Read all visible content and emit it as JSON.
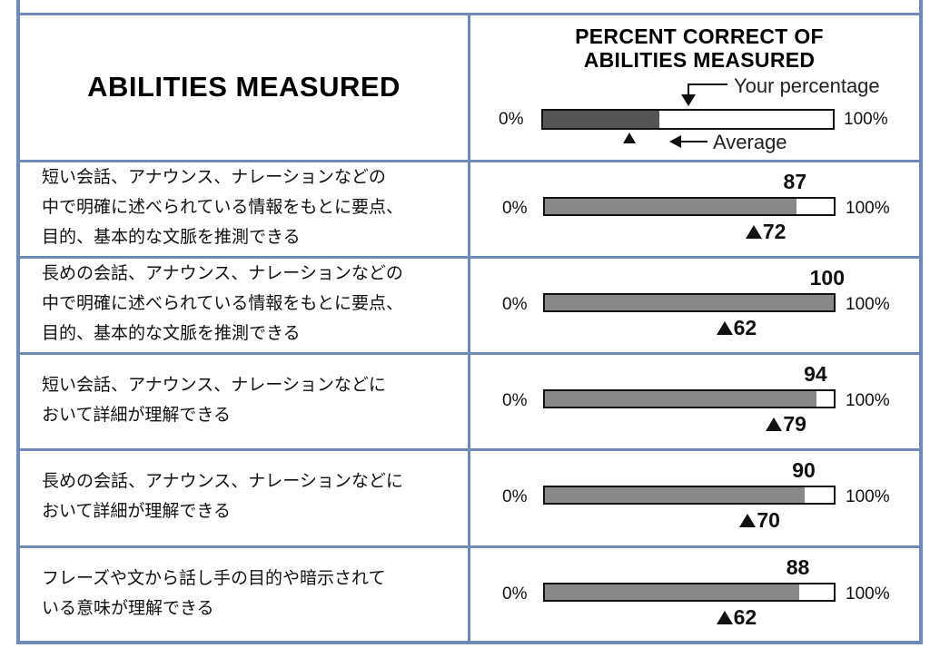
{
  "header": {
    "abilities_title": "ABILITIES MEASURED",
    "percent_title_line1": "PERCENT CORRECT OF",
    "percent_title_line2": "ABILITIES MEASURED",
    "legend_your": "Your percentage",
    "legend_average": "Average",
    "legend_min": "0%",
    "legend_max": "100%",
    "legend_your_value": 40,
    "legend_average_value": 30
  },
  "rows": [
    {
      "description": "短い会話、アナウンス、ナレーションなどの\n中で明確に述べられている情報をもとに要点、\n目的、基本的な文脈を推測できる",
      "score": "87",
      "average": "72",
      "min": "0%",
      "max": "100%"
    },
    {
      "description": "長めの会話、アナウンス、ナレーションなどの\n中で明確に述べられている情報をもとに要点、\n目的、基本的な文脈を推測できる",
      "score": "100",
      "average": "62",
      "min": "0%",
      "max": "100%"
    },
    {
      "description": "短い会話、アナウンス、ナレーションなどに\nおいて詳細が理解できる",
      "score": "94",
      "average": "79",
      "min": "0%",
      "max": "100%"
    },
    {
      "description": "長めの会話、アナウンス、ナレーションなどに\nおいて詳細が理解できる",
      "score": "90",
      "average": "70",
      "min": "0%",
      "max": "100%"
    },
    {
      "description": "フレーズや文から話し手の目的や暗示されて\nいる意味が理解できる",
      "score": "88",
      "average": "62",
      "min": "0%",
      "max": "100%"
    }
  ],
  "colors": {
    "border": "#6f8ab9",
    "header_background": "#c3cee6",
    "bar_fill": "#888888",
    "legend_fill": "#555555"
  }
}
